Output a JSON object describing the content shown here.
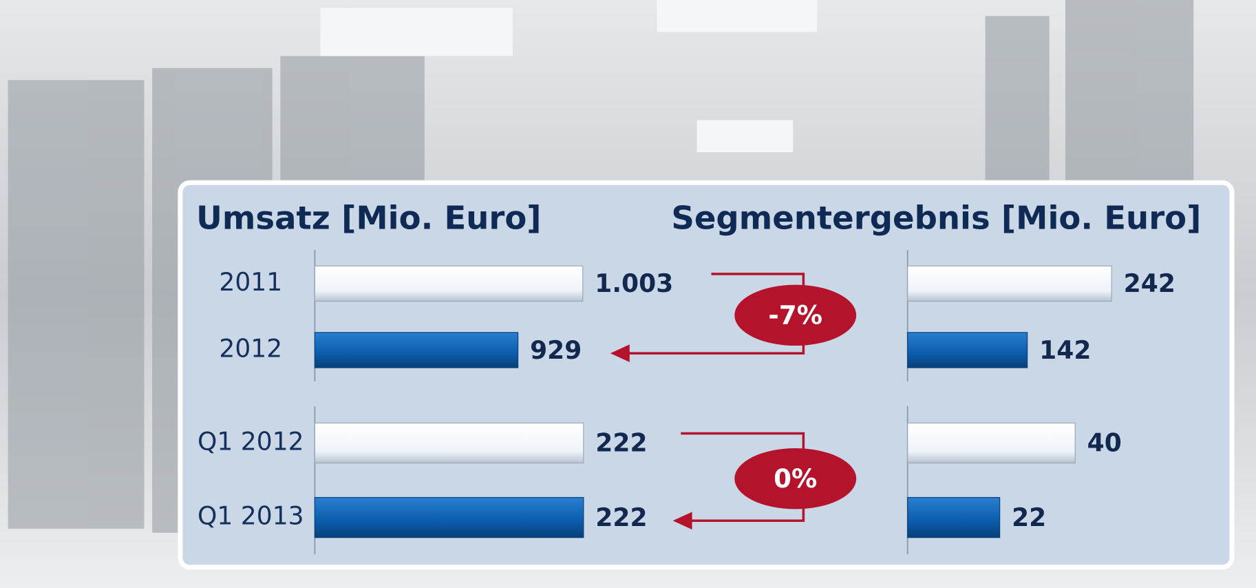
{
  "chart_data": [
    {
      "type": "bar",
      "orientation": "horizontal",
      "title": "Umsatz [Mio. Euro]",
      "colors": [
        "#eef4fa",
        "#0b5cab"
      ],
      "panels": [
        {
          "categories": [
            "2011",
            "2012"
          ],
          "values": [
            1003,
            929
          ],
          "value_labels": [
            "1.003",
            "929"
          ],
          "xlim": [
            697,
            1008
          ]
        },
        {
          "categories": [
            "Q1 2012",
            "Q1 2013"
          ],
          "values": [
            222,
            222
          ],
          "xlim": [
            0,
            225
          ]
        }
      ],
      "annotations": [
        "-7%",
        "0%"
      ]
    },
    {
      "type": "bar",
      "orientation": "horizontal",
      "title": "Segmentergebnis [Mio. Euro]",
      "colors": [
        "#eef4fa",
        "#0b5cab"
      ],
      "panels": [
        {
          "values": [
            242,
            142
          ],
          "xlim": [
            0,
            323
          ]
        },
        {
          "values": [
            40,
            22
          ],
          "xlim": [
            0,
            65
          ]
        }
      ]
    }
  ]
}
